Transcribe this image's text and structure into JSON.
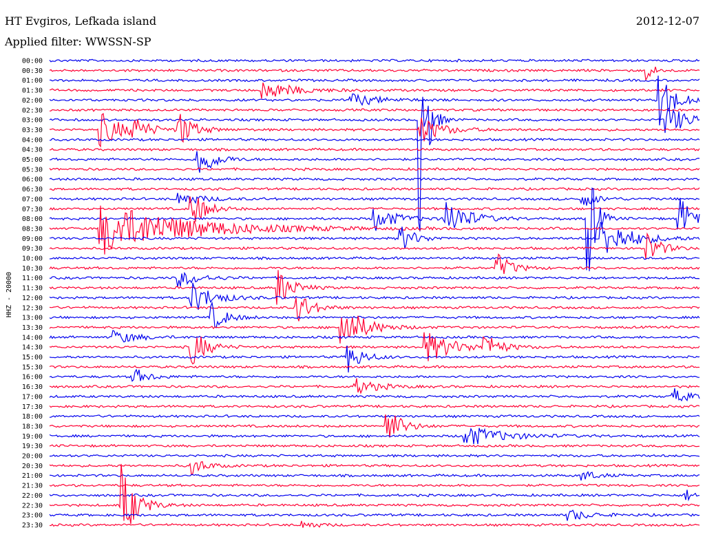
{
  "header": {
    "station": "HT Evgiros, Lefkada island",
    "date": "2012-12-07",
    "filter": "Applied filter: WWSSN-SP"
  },
  "chart_data": {
    "type": "line",
    "title": "HT Evgiros, Lefkada island",
    "ylabel": "HHZ - 20000",
    "row_labels": [
      "00:00",
      "00:30",
      "01:00",
      "01:30",
      "02:00",
      "02:30",
      "03:00",
      "03:30",
      "04:00",
      "04:30",
      "05:00",
      "05:30",
      "06:00",
      "06:30",
      "07:00",
      "07:30",
      "08:00",
      "08:30",
      "09:00",
      "09:30",
      "10:00",
      "10:30",
      "11:00",
      "11:30",
      "12:00",
      "12:30",
      "13:00",
      "13:30",
      "14:00",
      "14:30",
      "15:00",
      "15:30",
      "16:00",
      "16:30",
      "17:00",
      "17:30",
      "18:00",
      "18:30",
      "19:00",
      "19:30",
      "20:00",
      "20:30",
      "21:00",
      "21:30",
      "22:00",
      "22:30",
      "23:00",
      "23:30"
    ],
    "row_colors": [
      "#0000ee",
      "#ff0033"
    ],
    "x_range_minutes": [
      0,
      30
    ],
    "events": [
      {
        "row": 1,
        "at": 0.92,
        "amp": 14,
        "dur": 0.01
      },
      {
        "row": 3,
        "at": 0.33,
        "amp": 14,
        "dur": 0.04
      },
      {
        "row": 4,
        "at": 0.46,
        "amp": 10,
        "dur": 0.04
      },
      {
        "row": 4,
        "at": 0.94,
        "amp": 40,
        "dur": 0.02
      },
      {
        "row": 6,
        "at": 0.57,
        "amp": 170,
        "dur": 0.01
      },
      {
        "row": 6,
        "at": 0.95,
        "amp": 22,
        "dur": 0.03
      },
      {
        "row": 7,
        "at": 0.08,
        "amp": 24,
        "dur": 0.03
      },
      {
        "row": 7,
        "at": 0.13,
        "amp": 16,
        "dur": 0.02
      },
      {
        "row": 7,
        "at": 0.2,
        "amp": 26,
        "dur": 0.02
      },
      {
        "row": 7,
        "at": 0.57,
        "amp": 20,
        "dur": 0.03
      },
      {
        "row": 10,
        "at": 0.23,
        "amp": 30,
        "dur": 0.02
      },
      {
        "row": 14,
        "at": 0.2,
        "amp": 10,
        "dur": 0.03
      },
      {
        "row": 14,
        "at": 0.82,
        "amp": 12,
        "dur": 0.02
      },
      {
        "row": 15,
        "at": 0.22,
        "amp": 26,
        "dur": 0.02
      },
      {
        "row": 16,
        "at": 0.5,
        "amp": 18,
        "dur": 0.03
      },
      {
        "row": 16,
        "at": 0.61,
        "amp": 30,
        "dur": 0.03
      },
      {
        "row": 16,
        "at": 0.83,
        "amp": 90,
        "dur": 0.01
      },
      {
        "row": 16,
        "at": 0.97,
        "amp": 30,
        "dur": 0.02
      },
      {
        "row": 17,
        "at": 0.08,
        "amp": 38,
        "dur": 0.12
      },
      {
        "row": 18,
        "at": 0.54,
        "amp": 20,
        "dur": 0.02
      },
      {
        "row": 18,
        "at": 0.85,
        "amp": 30,
        "dur": 0.04
      },
      {
        "row": 19,
        "at": 0.92,
        "amp": 22,
        "dur": 0.02
      },
      {
        "row": 21,
        "at": 0.69,
        "amp": 20,
        "dur": 0.02
      },
      {
        "row": 22,
        "at": 0.2,
        "amp": 12,
        "dur": 0.03
      },
      {
        "row": 23,
        "at": 0.35,
        "amp": 30,
        "dur": 0.02
      },
      {
        "row": 24,
        "at": 0.22,
        "amp": 22,
        "dur": 0.03
      },
      {
        "row": 25,
        "at": 0.38,
        "amp": 26,
        "dur": 0.02
      },
      {
        "row": 26,
        "at": 0.25,
        "amp": 20,
        "dur": 0.02
      },
      {
        "row": 27,
        "at": 0.45,
        "amp": 36,
        "dur": 0.03
      },
      {
        "row": 28,
        "at": 0.1,
        "amp": 10,
        "dur": 0.03
      },
      {
        "row": 29,
        "at": 0.22,
        "amp": 28,
        "dur": 0.02
      },
      {
        "row": 29,
        "at": 0.58,
        "amp": 22,
        "dur": 0.04
      },
      {
        "row": 29,
        "at": 0.67,
        "amp": 18,
        "dur": 0.02
      },
      {
        "row": 30,
        "at": 0.46,
        "amp": 22,
        "dur": 0.02
      },
      {
        "row": 32,
        "at": 0.13,
        "amp": 12,
        "dur": 0.02
      },
      {
        "row": 33,
        "at": 0.47,
        "amp": 12,
        "dur": 0.03
      },
      {
        "row": 34,
        "at": 0.96,
        "amp": 12,
        "dur": 0.02
      },
      {
        "row": 37,
        "at": 0.52,
        "amp": 28,
        "dur": 0.02
      },
      {
        "row": 38,
        "at": 0.64,
        "amp": 16,
        "dur": 0.05
      },
      {
        "row": 41,
        "at": 0.22,
        "amp": 12,
        "dur": 0.02
      },
      {
        "row": 42,
        "at": 0.82,
        "amp": 8,
        "dur": 0.02
      },
      {
        "row": 44,
        "at": 0.98,
        "amp": 8,
        "dur": 0.01
      },
      {
        "row": 45,
        "at": 0.11,
        "amp": 60,
        "dur": 0.02
      },
      {
        "row": 46,
        "at": 0.8,
        "amp": 8,
        "dur": 0.03
      },
      {
        "row": 47,
        "at": 0.39,
        "amp": 6,
        "dur": 0.02
      }
    ]
  }
}
